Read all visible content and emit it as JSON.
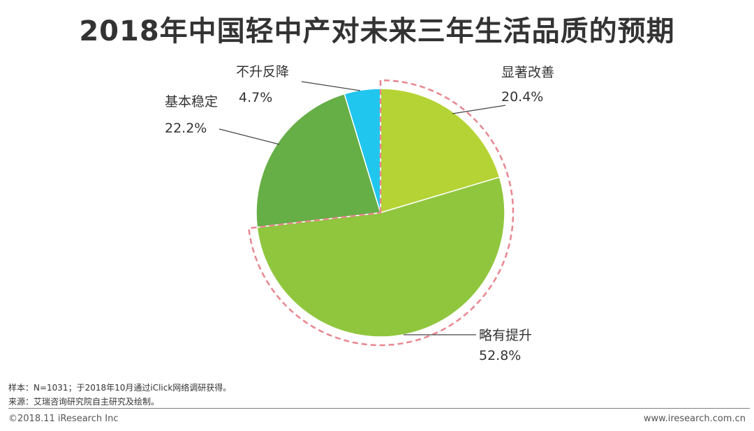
{
  "chart_data": {
    "type": "pie",
    "title": "2018年中国轻中产对未来三年生活品质的预期",
    "slices": [
      {
        "label": "显著改善",
        "value": 20.4,
        "value_label": "20.4%",
        "color": "#b5d334"
      },
      {
        "label": "略有提升",
        "value": 52.8,
        "value_label": "52.8%",
        "color": "#8fc63e"
      },
      {
        "label": "基本稳定",
        "value": 22.2,
        "value_label": "22.2%",
        "color": "#66ae46"
      },
      {
        "label": "不升反降",
        "value": 4.7,
        "value_label": "4.7%",
        "color": "#21c6ee"
      }
    ],
    "highlight": {
      "slices": [
        "显著改善",
        "略有提升"
      ],
      "style": "dashed-outline",
      "color": "#e8868e"
    },
    "start_angle": "12 o'clock",
    "direction": "clockwise"
  },
  "footnotes": {
    "sample": "样本：N=1031；于2018年10月通过iClick网络调研获得。",
    "source": "来源：艾瑞咨询研究院自主研究及绘制。"
  },
  "footer": {
    "copyright": "©2018.11 iResearch Inc",
    "website": "www.iresearch.com.cn"
  }
}
